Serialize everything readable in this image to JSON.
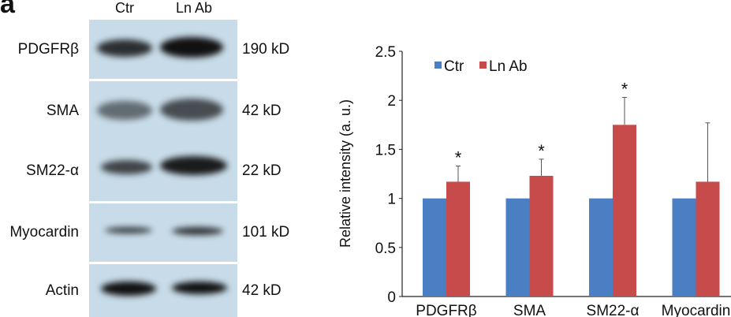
{
  "figure": {
    "panel_label": "a",
    "lanes": [
      "Ctr",
      "Ln Ab"
    ],
    "blots": [
      {
        "protein": "PDGFRβ",
        "size": "190 kD"
      },
      {
        "protein": "SMA",
        "size": "42 kD"
      },
      {
        "protein": "SM22-α",
        "size": "22 kD"
      },
      {
        "protein": "Myocardin",
        "size": "101 kD"
      },
      {
        "protein": "Actin",
        "size": "42 kD"
      }
    ]
  },
  "chart_data": {
    "type": "bar",
    "categories": [
      "PDGFRβ",
      "SMA",
      "SM22-α",
      "Myocardin"
    ],
    "series": [
      {
        "name": "Ctr",
        "color": "#4a7fc4",
        "values": [
          1.0,
          1.0,
          1.0,
          1.0
        ],
        "error_upper": [
          1.0,
          1.0,
          1.0,
          1.0
        ]
      },
      {
        "name": "Ln Ab",
        "color": "#c84b4b",
        "values": [
          1.17,
          1.23,
          1.75,
          1.17
        ],
        "error_upper": [
          1.33,
          1.4,
          2.03,
          1.77
        ]
      }
    ],
    "significance": [
      "*",
      "*",
      "*",
      ""
    ],
    "ylabel": "Relative intensity (a. u.)",
    "ylim": [
      0,
      2.5
    ],
    "yticks": [
      "0",
      "0.5",
      "1",
      "1.5",
      "2",
      "2.5"
    ],
    "legend": "top-left",
    "grid": false
  }
}
